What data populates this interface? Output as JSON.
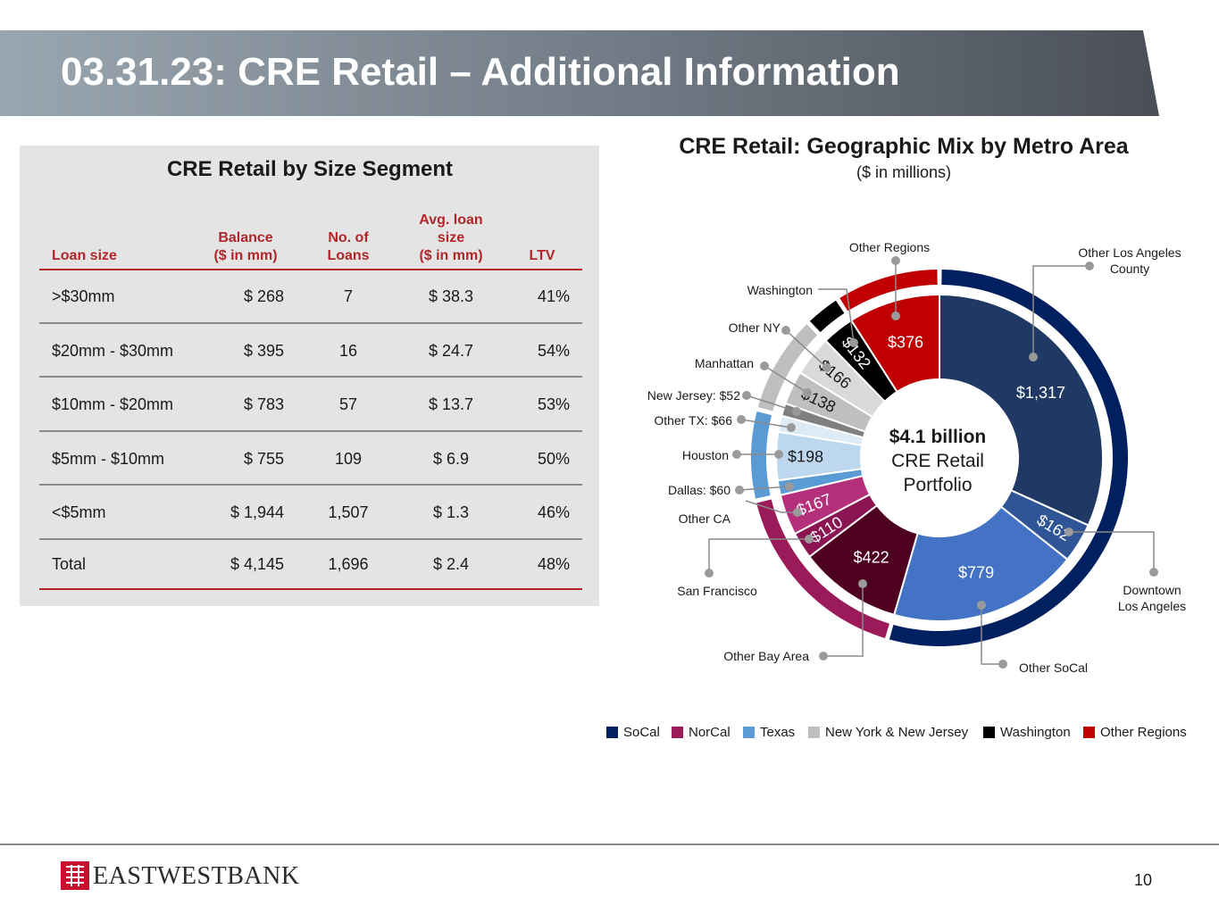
{
  "title": "03.31.23: CRE Retail – Additional Information",
  "table": {
    "title": "CRE Retail by Size Segment",
    "headers": {
      "loan_size": "Loan size",
      "balance_1": "Balance",
      "balance_2": "($ in mm)",
      "loans_1": "No. of",
      "loans_2": "Loans",
      "avg_1": "Avg. loan",
      "avg_2": "size",
      "avg_3": "($ in mm)",
      "ltv": "LTV"
    },
    "rows": [
      {
        "size": ">$30mm",
        "balance": "$ 268",
        "loans": "7",
        "avg": "$ 38.3",
        "ltv": "41%"
      },
      {
        "size": "$20mm - $30mm",
        "balance": "$ 395",
        "loans": "16",
        "avg": "$ 24.7",
        "ltv": "54%"
      },
      {
        "size": "$10mm - $20mm",
        "balance": "$ 783",
        "loans": "57",
        "avg": "$ 13.7",
        "ltv": "53%"
      },
      {
        "size": "$5mm - $10mm",
        "balance": "$ 755",
        "loans": "109",
        "avg": "$ 6.9",
        "ltv": "50%"
      },
      {
        "size": "<$5mm",
        "balance": "$ 1,944",
        "loans": "1,507",
        "avg": "$ 1.3",
        "ltv": "46%"
      },
      {
        "size": "Total",
        "balance": "$ 4,145",
        "loans": "1,696",
        "avg": "$ 2.4",
        "ltv": "48%"
      }
    ]
  },
  "chart_data": {
    "type": "pie",
    "title": "CRE Retail: Geographic Mix by Metro Area",
    "subtitle": "($ in millions)",
    "center_text": [
      "$4.1 billion",
      "CRE Retail",
      "Portfolio"
    ],
    "slices": [
      {
        "name": "Other Los Angeles County",
        "value": 1317,
        "label": "$1,317",
        "group": "SoCal",
        "color": "#1f3864"
      },
      {
        "name": "Downtown Los Angeles",
        "value": 162,
        "label": "$162",
        "group": "SoCal",
        "color": "#2f5597"
      },
      {
        "name": "Other SoCal",
        "value": 779,
        "label": "$779",
        "group": "SoCal",
        "color": "#4472c4"
      },
      {
        "name": "Other Bay Area",
        "value": 422,
        "label": "$422",
        "group": "NorCal",
        "color": "#4d0020"
      },
      {
        "name": "San Francisco",
        "value": 110,
        "label": "$110",
        "group": "NorCal",
        "color": "#8b1452"
      },
      {
        "name": "Other CA",
        "value": 167,
        "label": "$167",
        "group": "NorCal",
        "color": "#b5307a"
      },
      {
        "name": "Dallas: $60",
        "value": 60,
        "label": "",
        "group": "Texas",
        "color": "#5b9bd5"
      },
      {
        "name": "Houston",
        "value": 198,
        "label": "$198",
        "group": "Texas",
        "color": "#bdd7ee"
      },
      {
        "name": "Other TX: $66",
        "value": 66,
        "label": "",
        "group": "Texas",
        "color": "#ddebf7"
      },
      {
        "name": "New Jersey: $52",
        "value": 52,
        "label": "",
        "group": "New York & New Jersey",
        "color": "#7f7f7f"
      },
      {
        "name": "Manhattan",
        "value": 138,
        "label": "$138",
        "group": "New York & New Jersey",
        "color": "#bfbfbf"
      },
      {
        "name": "Other NY",
        "value": 166,
        "label": "$166",
        "group": "New York & New Jersey",
        "color": "#d9d9d9"
      },
      {
        "name": "Washington",
        "value": 132,
        "label": "$132",
        "group": "Washington",
        "color": "#000000"
      },
      {
        "name": "Other Regions",
        "value": 376,
        "label": "$376",
        "group": "Other Regions",
        "color": "#c00000"
      }
    ],
    "groups": [
      {
        "name": "SoCal",
        "color": "#002060"
      },
      {
        "name": "NorCal",
        "color": "#9b1b5a"
      },
      {
        "name": "Texas",
        "color": "#5b9bd5"
      },
      {
        "name": "New York & New Jersey",
        "color": "#bfbfbf"
      },
      {
        "name": "Washington",
        "color": "#000000"
      },
      {
        "name": "Other Regions",
        "color": "#c00000"
      }
    ],
    "callouts": {
      "other_regions": "Other Regions",
      "other_la_1": "Other Los Angeles",
      "other_la_2": "County",
      "washington": "Washington",
      "other_ny": "Other NY",
      "manhattan": "Manhattan",
      "new_jersey": "New Jersey: $52",
      "other_tx": "Other TX: $66",
      "houston": "Houston",
      "dallas": "Dallas: $60",
      "other_ca": "Other CA",
      "san_francisco": "San Francisco",
      "downtown_la_1": "Downtown",
      "downtown_la_2": "Los Angeles",
      "other_bay_area": "Other Bay Area",
      "other_socal": "Other SoCal"
    },
    "legend_position": "bottom"
  },
  "footer": {
    "logo_text": "EASTWESTBANK",
    "page_number": "10"
  }
}
